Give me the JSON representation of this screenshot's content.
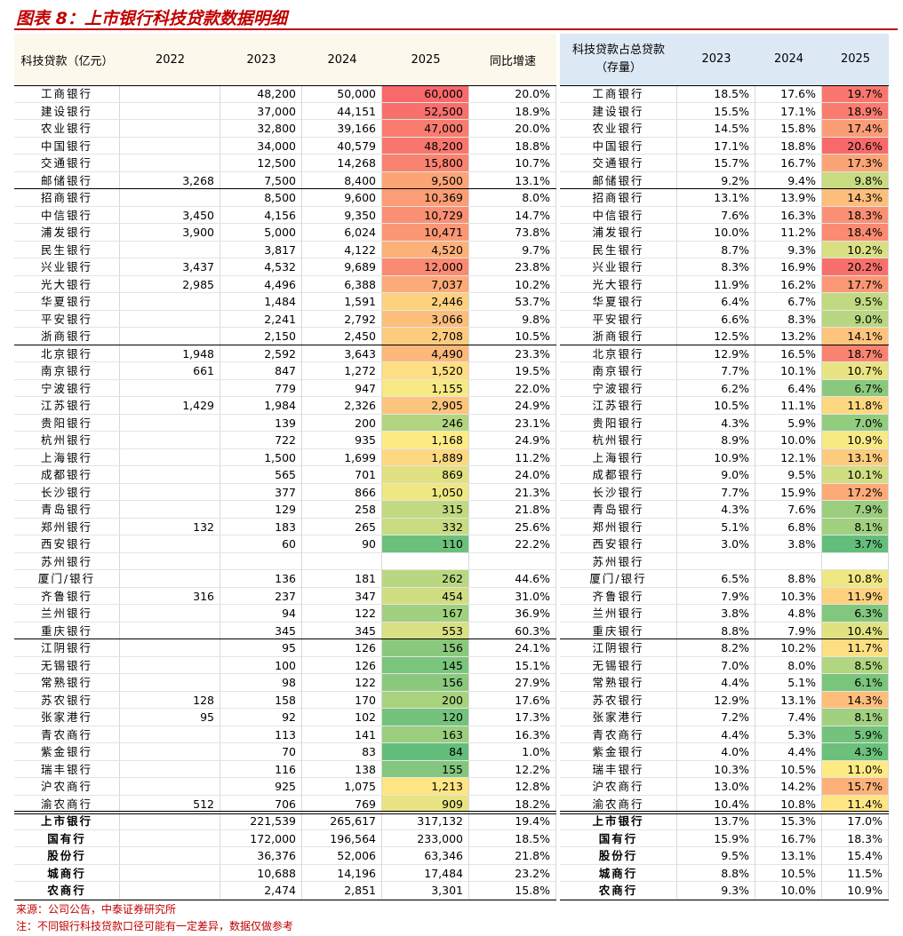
{
  "title": "图表 8：上市银行科技贷款数据明细",
  "left_table": {
    "header": [
      "科技贷款（亿元）",
      "2022",
      "2023",
      "2024",
      "2025",
      "同比增速"
    ],
    "rows": [
      [
        "工商银行",
        null,
        "48,200",
        "50,000",
        "60,000",
        "20.0%"
      ],
      [
        "建设银行",
        null,
        "37,000",
        "44,151",
        "52,500",
        "18.9%"
      ],
      [
        "农业银行",
        null,
        "32,800",
        "39,166",
        "47,000",
        "20.0%"
      ],
      [
        "中国银行",
        null,
        "34,000",
        "40,579",
        "48,200",
        "18.8%"
      ],
      [
        "交通银行",
        null,
        "12,500",
        "14,268",
        "15,800",
        "10.7%"
      ],
      [
        "邮储银行",
        "3,268",
        "7,500",
        "8,400",
        "9,500",
        "13.1%"
      ],
      [
        "招商银行",
        null,
        "8,500",
        "9,600",
        "10,369",
        "8.0%"
      ],
      [
        "中信银行",
        "3,450",
        "4,156",
        "9,350",
        "10,729",
        "14.7%"
      ],
      [
        "浦发银行",
        "3,900",
        "5,000",
        "6,024",
        "10,471",
        "73.8%"
      ],
      [
        "民生银行",
        null,
        "3,817",
        "4,122",
        "4,520",
        "9.7%"
      ],
      [
        "兴业银行",
        "3,437",
        "4,532",
        "9,689",
        "12,000",
        "23.8%"
      ],
      [
        "光大银行",
        "2,985",
        "4,496",
        "6,388",
        "7,037",
        "10.2%"
      ],
      [
        "华夏银行",
        null,
        "1,484",
        "1,591",
        "2,446",
        "53.7%"
      ],
      [
        "平安银行",
        null,
        "2,241",
        "2,792",
        "3,066",
        "9.8%"
      ],
      [
        "浙商银行",
        null,
        "2,150",
        "2,450",
        "2,708",
        "10.5%"
      ],
      [
        "北京银行",
        "1,948",
        "2,592",
        "3,643",
        "4,490",
        "23.3%"
      ],
      [
        "南京银行",
        "661",
        "847",
        "1,272",
        "1,520",
        "19.5%"
      ],
      [
        "宁波银行",
        null,
        "779",
        "947",
        "1,155",
        "22.0%"
      ],
      [
        "江苏银行",
        "1,429",
        "1,984",
        "2,326",
        "2,905",
        "24.9%"
      ],
      [
        "贵阳银行",
        null,
        "139",
        "200",
        "246",
        "23.1%"
      ],
      [
        "杭州银行",
        null,
        "722",
        "935",
        "1,168",
        "24.9%"
      ],
      [
        "上海银行",
        null,
        "1,500",
        "1,699",
        "1,889",
        "11.2%"
      ],
      [
        "成都银行",
        null,
        "565",
        "701",
        "869",
        "24.0%"
      ],
      [
        "长沙银行",
        null,
        "377",
        "866",
        "1,050",
        "21.3%"
      ],
      [
        "青岛银行",
        null,
        "129",
        "258",
        "315",
        "21.8%"
      ],
      [
        "郑州银行",
        "132",
        "183",
        "265",
        "332",
        "25.6%"
      ],
      [
        "西安银行",
        null,
        "60",
        "90",
        "110",
        "22.2%"
      ],
      [
        "苏州银行",
        null,
        null,
        null,
        null,
        null
      ],
      [
        "厦门/银行",
        null,
        "136",
        "181",
        "262",
        "44.6%"
      ],
      [
        "齐鲁银行",
        "316",
        "237",
        "347",
        "454",
        "31.0%"
      ],
      [
        "兰州银行",
        null,
        "94",
        "122",
        "167",
        "36.9%"
      ],
      [
        "重庆银行",
        null,
        "345",
        "345",
        "553",
        "60.3%"
      ],
      [
        "江阴银行",
        null,
        "95",
        "126",
        "156",
        "24.1%"
      ],
      [
        "无锡银行",
        null,
        "100",
        "126",
        "145",
        "15.1%"
      ],
      [
        "常熟银行",
        null,
        "98",
        "122",
        "156",
        "27.9%"
      ],
      [
        "苏农银行",
        "128",
        "158",
        "170",
        "200",
        "17.6%"
      ],
      [
        "张家港行",
        "95",
        "92",
        "102",
        "120",
        "17.3%"
      ],
      [
        "青农商行",
        null,
        "113",
        "141",
        "163",
        "16.3%"
      ],
      [
        "紫金银行",
        null,
        "70",
        "83",
        "84",
        "1.0%"
      ],
      [
        "瑞丰银行",
        null,
        "116",
        "138",
        "155",
        "12.2%"
      ],
      [
        "沪农商行",
        null,
        "925",
        "1,075",
        "1,213",
        "12.8%"
      ],
      [
        "渝农商行",
        "512",
        "706",
        "769",
        "909",
        "18.2%"
      ],
      [
        "上市银行",
        null,
        "221,539",
        "265,617",
        "317,132",
        "19.4%"
      ],
      [
        "国有行",
        null,
        "172,000",
        "196,564",
        "233,000",
        "18.5%"
      ],
      [
        "股份行",
        null,
        "36,376",
        "52,006",
        "63,346",
        "21.8%"
      ],
      [
        "城商行",
        null,
        "10,688",
        "14,196",
        "17,484",
        "23.2%"
      ],
      [
        "农商行",
        null,
        "2,474",
        "2,851",
        "3,301",
        "15.8%"
      ]
    ]
  },
  "right_table": {
    "header": [
      "科技贷款占总贷款（存量）",
      "2023",
      "2024",
      "2025"
    ],
    "rows": [
      [
        "工商银行",
        "18.5%",
        "17.6%",
        "19.7%"
      ],
      [
        "建设银行",
        "15.5%",
        "17.1%",
        "18.9%"
      ],
      [
        "农业银行",
        "14.5%",
        "15.8%",
        "17.4%"
      ],
      [
        "中国银行",
        "17.1%",
        "18.8%",
        "20.6%"
      ],
      [
        "交通银行",
        "15.7%",
        "16.7%",
        "17.3%"
      ],
      [
        "邮储银行",
        "9.2%",
        "9.4%",
        "9.8%"
      ],
      [
        "招商银行",
        "13.1%",
        "13.9%",
        "14.3%"
      ],
      [
        "中信银行",
        "7.6%",
        "16.3%",
        "18.3%"
      ],
      [
        "浦发银行",
        "10.0%",
        "11.2%",
        "18.4%"
      ],
      [
        "民生银行",
        "8.7%",
        "9.3%",
        "10.2%"
      ],
      [
        "兴业银行",
        "8.3%",
        "16.9%",
        "20.2%"
      ],
      [
        "光大银行",
        "11.9%",
        "16.2%",
        "17.7%"
      ],
      [
        "华夏银行",
        "6.4%",
        "6.7%",
        "9.5%"
      ],
      [
        "平安银行",
        "6.6%",
        "8.3%",
        "9.0%"
      ],
      [
        "浙商银行",
        "12.5%",
        "13.2%",
        "14.1%"
      ],
      [
        "北京银行",
        "12.9%",
        "16.5%",
        "18.7%"
      ],
      [
        "南京银行",
        "7.7%",
        "10.1%",
        "10.7%"
      ],
      [
        "宁波银行",
        "6.2%",
        "6.4%",
        "6.7%"
      ],
      [
        "江苏银行",
        "10.5%",
        "11.1%",
        "11.8%"
      ],
      [
        "贵阳银行",
        "4.3%",
        "5.9%",
        "7.0%"
      ],
      [
        "杭州银行",
        "8.9%",
        "10.0%",
        "10.9%"
      ],
      [
        "上海银行",
        "10.9%",
        "12.1%",
        "13.1%"
      ],
      [
        "成都银行",
        "9.0%",
        "9.5%",
        "10.1%"
      ],
      [
        "长沙银行",
        "7.7%",
        "15.9%",
        "17.2%"
      ],
      [
        "青岛银行",
        "4.3%",
        "7.6%",
        "7.9%"
      ],
      [
        "郑州银行",
        "5.1%",
        "6.8%",
        "8.1%"
      ],
      [
        "西安银行",
        "3.0%",
        "3.8%",
        "3.7%"
      ],
      [
        "苏州银行",
        null,
        null,
        null
      ],
      [
        "厦门/银行",
        "6.5%",
        "8.8%",
        "10.8%"
      ],
      [
        "齐鲁银行",
        "7.9%",
        "10.3%",
        "11.9%"
      ],
      [
        "兰州银行",
        "3.8%",
        "4.8%",
        "6.3%"
      ],
      [
        "重庆银行",
        "8.8%",
        "7.9%",
        "10.4%"
      ],
      [
        "江阴银行",
        "8.2%",
        "10.2%",
        "11.7%"
      ],
      [
        "无锡银行",
        "7.0%",
        "8.0%",
        "8.5%"
      ],
      [
        "常熟银行",
        "4.4%",
        "5.1%",
        "6.1%"
      ],
      [
        "苏农银行",
        "12.9%",
        "13.1%",
        "14.3%"
      ],
      [
        "张家港行",
        "7.2%",
        "7.4%",
        "8.1%"
      ],
      [
        "青农商行",
        "4.4%",
        "5.3%",
        "5.9%"
      ],
      [
        "紫金银行",
        "4.0%",
        "4.4%",
        "4.3%"
      ],
      [
        "瑞丰银行",
        "10.3%",
        "10.5%",
        "11.0%"
      ],
      [
        "沪农商行",
        "13.0%",
        "14.2%",
        "15.7%"
      ],
      [
        "渝农商行",
        "10.4%",
        "10.8%",
        "11.4%"
      ],
      [
        "上市银行",
        "13.7%",
        "15.3%",
        "17.0%"
      ],
      [
        "国有行",
        "15.9%",
        "16.7%",
        "18.3%"
      ],
      [
        "股份行",
        "9.5%",
        "13.1%",
        "15.4%"
      ],
      [
        "城商行",
        "8.8%",
        "10.5%",
        "11.5%"
      ],
      [
        "农商行",
        "9.3%",
        "10.0%",
        "10.9%"
      ]
    ]
  },
  "notes": [
    "来源：公司公告，中泰证券研究所",
    "注：不同银行科技贷款口径可能有一定差异，数据仅做参考"
  ]
}
